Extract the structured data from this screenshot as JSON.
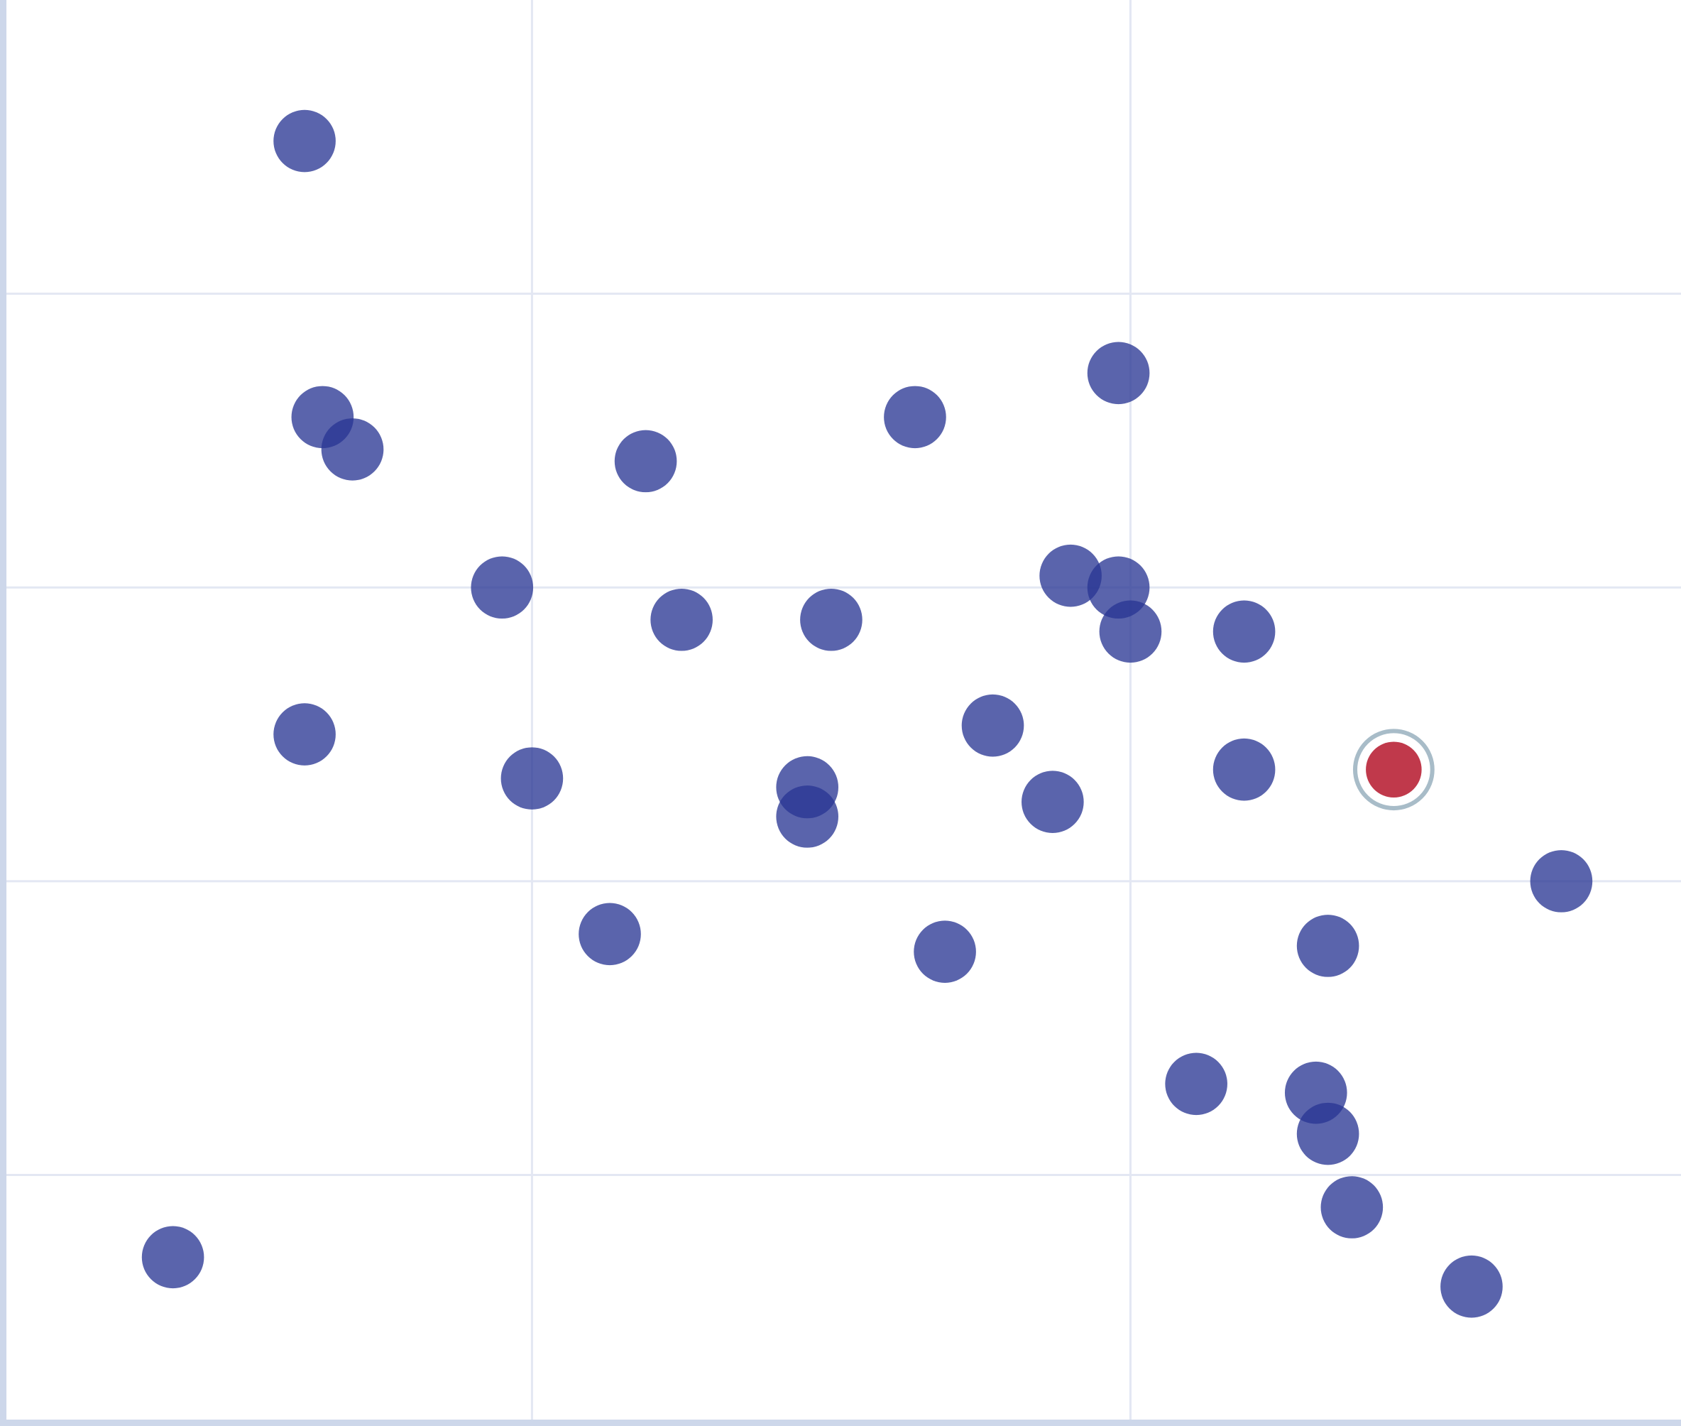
{
  "chart_data": {
    "type": "scatter",
    "title": "",
    "xlabel": "",
    "ylabel": "",
    "xlim": [
      0.12,
      2.92
    ],
    "ylim": [
      0.16,
      5.0
    ],
    "grid": true,
    "x_gridlines": [
      1,
      2
    ],
    "y_gridlines": [
      1,
      2,
      3,
      4
    ],
    "colors": {
      "point": "#283593",
      "highlight": "#c0394b",
      "highlight_ring": "#a8bcc8",
      "grid": "#e3e7f3",
      "axis": "#cdd7ea"
    },
    "points": [
      {
        "x": 0.62,
        "y": 4.52
      },
      {
        "x": 0.65,
        "y": 3.58
      },
      {
        "x": 0.7,
        "y": 3.47
      },
      {
        "x": 1.19,
        "y": 3.43
      },
      {
        "x": 1.64,
        "y": 3.58
      },
      {
        "x": 1.98,
        "y": 3.73
      },
      {
        "x": 0.95,
        "y": 3.0
      },
      {
        "x": 1.25,
        "y": 2.89
      },
      {
        "x": 1.5,
        "y": 2.89
      },
      {
        "x": 1.9,
        "y": 3.04
      },
      {
        "x": 1.98,
        "y": 3.0
      },
      {
        "x": 2.0,
        "y": 2.85
      },
      {
        "x": 2.19,
        "y": 2.85
      },
      {
        "x": 0.62,
        "y": 2.5
      },
      {
        "x": 1.0,
        "y": 2.35
      },
      {
        "x": 1.46,
        "y": 2.32
      },
      {
        "x": 1.46,
        "y": 2.22
      },
      {
        "x": 1.77,
        "y": 2.53
      },
      {
        "x": 1.87,
        "y": 2.27
      },
      {
        "x": 2.19,
        "y": 2.38
      },
      {
        "x": 2.44,
        "y": 2.38,
        "highlighted": true
      },
      {
        "x": 2.72,
        "y": 2.0
      },
      {
        "x": 1.13,
        "y": 1.82
      },
      {
        "x": 1.69,
        "y": 1.76
      },
      {
        "x": 2.33,
        "y": 1.78
      },
      {
        "x": 2.11,
        "y": 1.31
      },
      {
        "x": 2.31,
        "y": 1.28
      },
      {
        "x": 2.33,
        "y": 1.14
      },
      {
        "x": 2.37,
        "y": 0.89
      },
      {
        "x": 0.4,
        "y": 0.72
      },
      {
        "x": 2.57,
        "y": 0.62
      }
    ]
  }
}
